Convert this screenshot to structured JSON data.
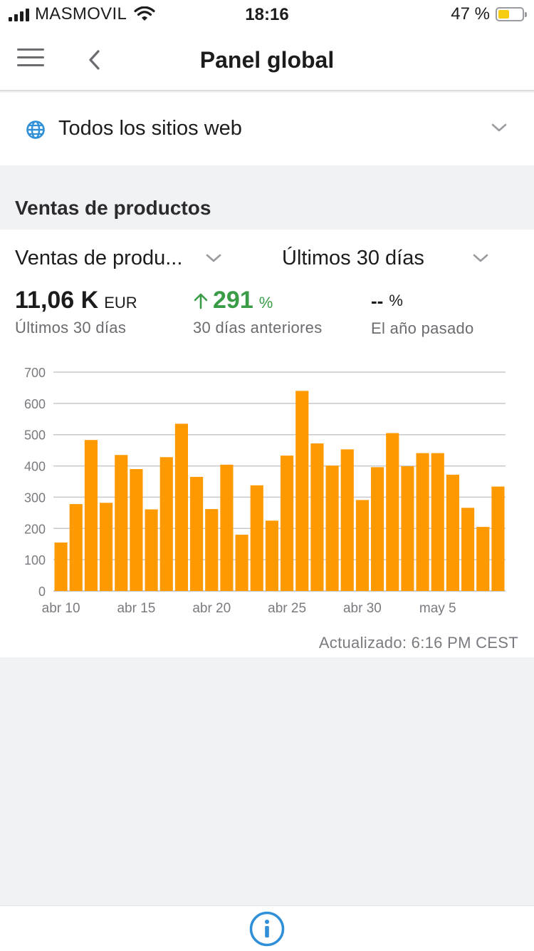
{
  "status_bar": {
    "carrier": "MASMOVIL",
    "time": "18:16",
    "battery_percent": "47 %",
    "battery_level": 0.47,
    "battery_color": "#f6cc12"
  },
  "nav": {
    "title": "Panel global",
    "menu_icon": "hamburger-menu-icon",
    "back_icon": "chevron-left-icon"
  },
  "site_selector": {
    "icon": "globe-icon",
    "label": "Todos los sitios web"
  },
  "section": {
    "title": "Ventas de productos"
  },
  "card": {
    "metric_dropdown": "Ventas de produ...",
    "period_dropdown": "Últimos 30 días",
    "stats": [
      {
        "value": "11,06 K",
        "unit": "EUR",
        "label": "Últimos 30 días"
      },
      {
        "value": "291",
        "unit": "%",
        "label": "30 días anteriores",
        "trend": "up",
        "color": "#3a9c46"
      },
      {
        "value": "--",
        "unit": "%",
        "label": "El año pasado"
      }
    ],
    "updated": "Actualizado: 6:16 PM CEST"
  },
  "chart_data": {
    "type": "bar",
    "color": "#ff9900",
    "ylim": [
      0,
      700
    ],
    "yticks": [
      0,
      100,
      200,
      300,
      400,
      500,
      600,
      700
    ],
    "x_tick_labels": [
      {
        "label": "abr 10",
        "index": 0
      },
      {
        "label": "abr 15",
        "index": 5
      },
      {
        "label": "abr 20",
        "index": 10
      },
      {
        "label": "abr 25",
        "index": 15
      },
      {
        "label": "abr 30",
        "index": 20
      },
      {
        "label": "may 5",
        "index": 25
      }
    ],
    "values": [
      155,
      278,
      483,
      282,
      435,
      390,
      261,
      428,
      535,
      365,
      262,
      404,
      180,
      338,
      225,
      433,
      640,
      472,
      401,
      453,
      291,
      396,
      505,
      399,
      441,
      441,
      372,
      266,
      205,
      334
    ],
    "grid": true
  },
  "bottom": {
    "info_icon": "info-circle-icon"
  }
}
